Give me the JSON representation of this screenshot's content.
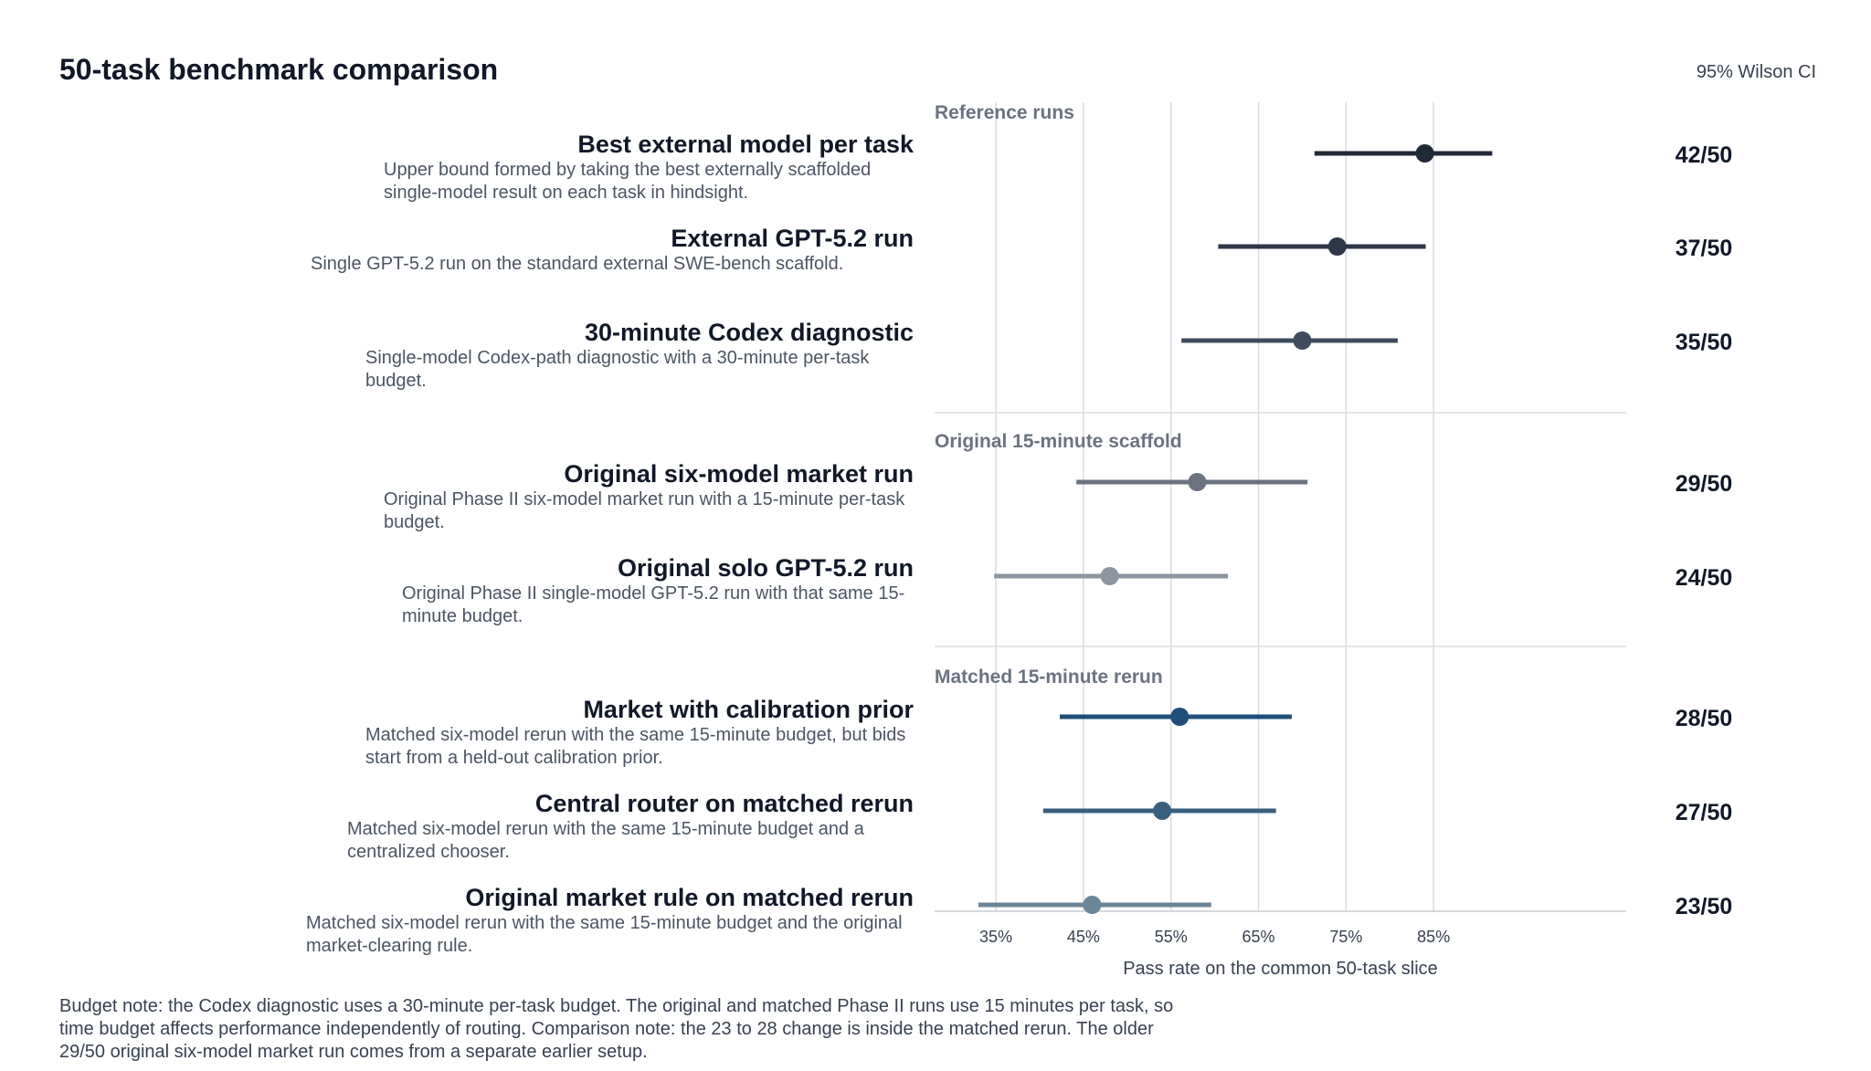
{
  "title": "50-task benchmark comparison",
  "ci_note": "95% Wilson CI",
  "chart_data": {
    "type": "forest",
    "xlabel": "Pass rate on the common 50-task slice",
    "xlim": [
      0.28,
      1.07
    ],
    "ticks": [
      0.35,
      0.45,
      0.55,
      0.65,
      0.75,
      0.85
    ],
    "tick_labels": [
      "35%",
      "45%",
      "55%",
      "65%",
      "75%",
      "85%"
    ],
    "groups": [
      {
        "name": "Reference runs",
        "rows": [
          {
            "label": "Best external model per task",
            "description": "Upper bound formed by taking the best externally scaffolded single-model result on each task in hindsight.",
            "value": 0.84,
            "ci": [
              0.714,
              0.917
            ],
            "count": "42/50",
            "color": "#1f2937"
          },
          {
            "label": "External GPT-5.2 run",
            "description": "Single GPT-5.2 run on the standard external SWE-bench scaffold.",
            "value": 0.74,
            "ci": [
              0.604,
              0.841
            ],
            "count": "37/50",
            "color": "#2d3748"
          },
          {
            "label": "30-minute Codex diagnostic",
            "description": "Single-model Codex-path diagnostic with a 30-minute per-task budget.",
            "value": 0.7,
            "ci": [
              0.562,
              0.809
            ],
            "count": "35/50",
            "color": "#3f4b5e"
          }
        ]
      },
      {
        "name": "Original 15-minute scaffold",
        "rows": [
          {
            "label": "Original six-model market run",
            "description": "Original Phase II six-model market run with a 15-minute per-task budget.",
            "value": 0.58,
            "ci": [
              0.442,
              0.706
            ],
            "count": "29/50",
            "color": "#6b7280"
          },
          {
            "label": "Original solo GPT-5.2 run",
            "description": "Original Phase II single-model GPT-5.2 run with that same 15-minute budget.",
            "value": 0.48,
            "ci": [
              0.348,
              0.615
            ],
            "count": "24/50",
            "color": "#8d95a1"
          }
        ]
      },
      {
        "name": "Matched 15-minute rerun",
        "rows": [
          {
            "label": "Market with calibration prior",
            "description": "Matched six-model rerun with the same 15-minute budget, but bids start from a held-out calibration prior.",
            "value": 0.56,
            "ci": [
              0.423,
              0.688
            ],
            "count": "28/50",
            "color": "#1f4e79"
          },
          {
            "label": "Central router on matched rerun",
            "description": "Matched six-model rerun with the same 15-minute budget and a centralized chooser.",
            "value": 0.54,
            "ci": [
              0.404,
              0.67
            ],
            "count": "27/50",
            "color": "#3a5f7d"
          },
          {
            "label": "Original market rule on matched rerun",
            "description": "Matched six-model rerun with the same 15-minute budget and the original market-clearing rule.",
            "value": 0.46,
            "ci": [
              0.33,
              0.596
            ],
            "count": "23/50",
            "color": "#6b8599"
          }
        ]
      }
    ]
  },
  "footnote": "Budget note: the Codex diagnostic uses a 30-minute per-task budget. The original and matched Phase II runs use 15 minutes per task, so time budget affects performance independently of routing. Comparison note: the 23 to 28 change is inside the matched rerun. The older 29/50 original six-model market run comes from a separate earlier setup."
}
